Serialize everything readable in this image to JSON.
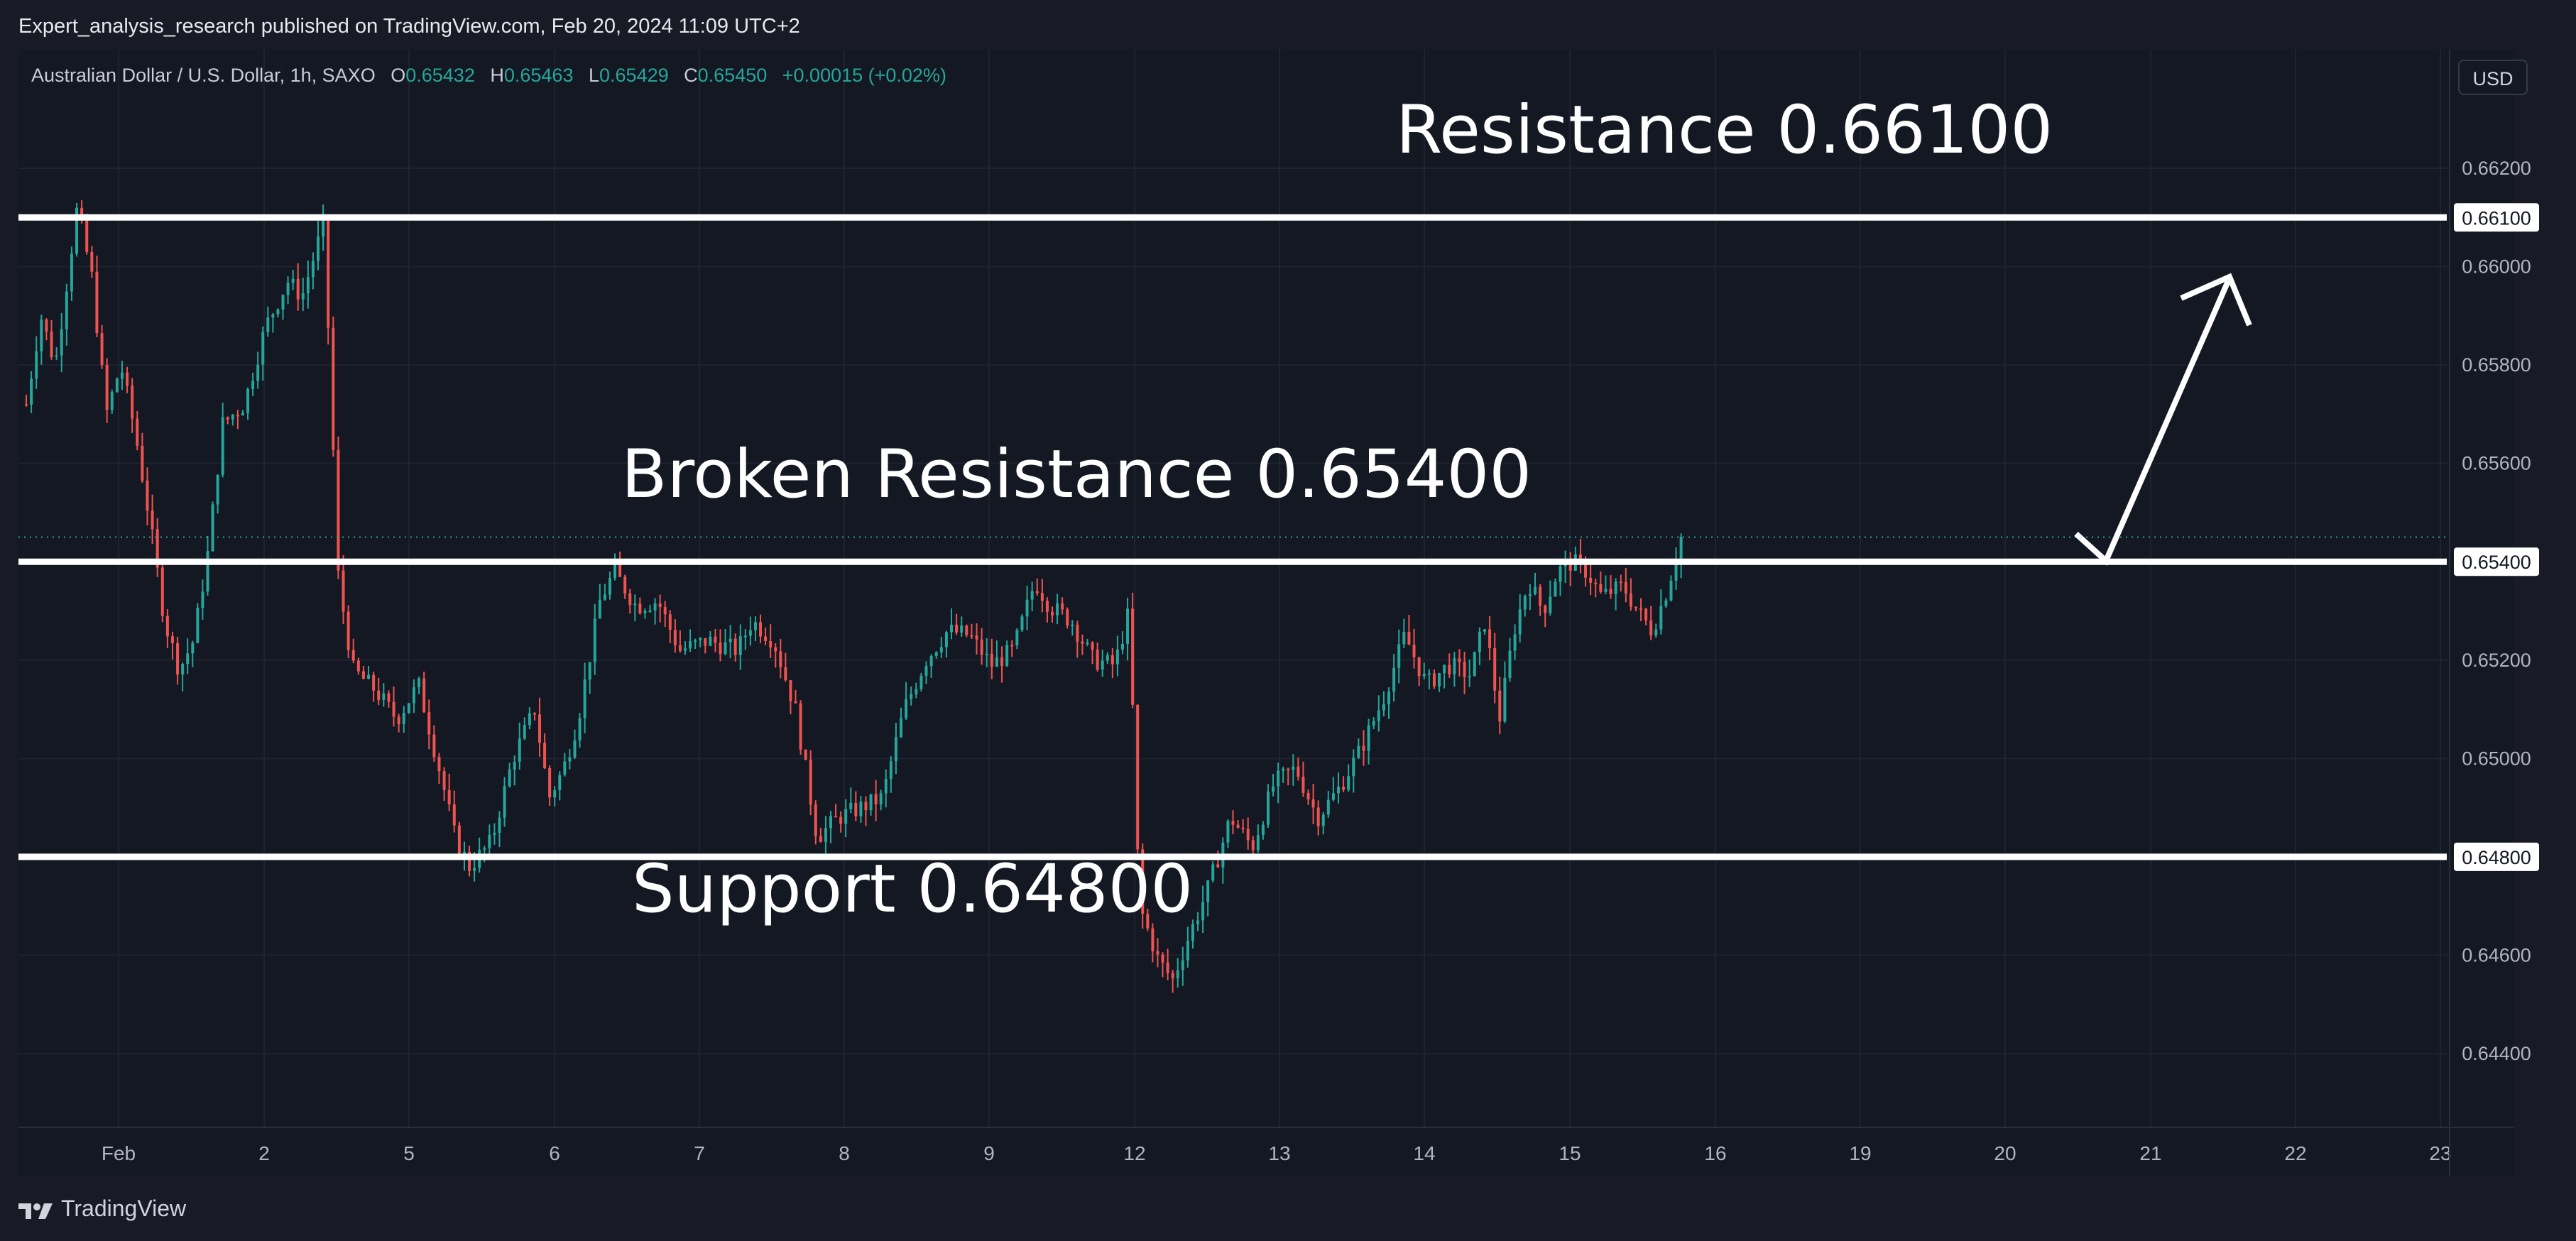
{
  "header": {
    "published_line": "Expert_analysis_research published on TradingView.com, Feb 20, 2024 11:09 UTC+2"
  },
  "symbol_bar": {
    "name": "Australian Dollar / U.S. Dollar, 1h, SAXO",
    "open_label": "O",
    "open": "0.65432",
    "high_label": "H",
    "high": "0.65463",
    "low_label": "L",
    "low": "0.65429",
    "close_label": "C",
    "close": "0.65450",
    "change": "+0.00015 (+0.02%)"
  },
  "currency_button": "USD",
  "brand": "TradingView",
  "colors": {
    "background": "#141823",
    "up": "#26a69a",
    "down": "#ef5350",
    "grid": "#1f2330",
    "annotation": "#ffffff"
  },
  "chart_data": {
    "type": "candlestick",
    "instrument": "AUDUSD",
    "interval": "1h",
    "ylim": [
      0.6415,
      0.6635
    ],
    "y_ticks": [
      "0.64400",
      "0.64600",
      "0.64800",
      "0.65000",
      "0.65200",
      "0.65400",
      "0.65600",
      "0.65800",
      "0.66000",
      "0.66200"
    ],
    "x_ticks": [
      "Feb",
      "2",
      "5",
      "6",
      "7",
      "8",
      "9",
      "12",
      "13",
      "14",
      "15",
      "16",
      "19",
      "20",
      "21",
      "22",
      "23"
    ],
    "grid": true,
    "last_price_line": 0.6545,
    "horizontal_levels": [
      {
        "value": 0.661,
        "label": "Resistance 0.66100",
        "axis_label": "0.66100"
      },
      {
        "value": 0.654,
        "label": "Broken Resistance 0.65400",
        "axis_label": "0.65400"
      },
      {
        "value": 0.648,
        "label": "Support 0.64800",
        "axis_label": "0.64800"
      }
    ],
    "projection_arrow": {
      "from": {
        "x": "20",
        "y": 0.6545
      },
      "via": {
        "x": "20",
        "y": 0.654
      },
      "to": {
        "x": "21.6",
        "y": 0.6599
      }
    },
    "price_path": [
      [
        0.0,
        0.6572
      ],
      [
        0.1,
        0.659
      ],
      [
        0.2,
        0.658
      ],
      [
        0.35,
        0.6612
      ],
      [
        0.45,
        0.6598
      ],
      [
        0.55,
        0.657
      ],
      [
        0.65,
        0.658
      ],
      [
        0.75,
        0.6566
      ],
      [
        0.85,
        0.6548
      ],
      [
        0.95,
        0.6528
      ],
      [
        1.05,
        0.6518
      ],
      [
        1.15,
        0.6524
      ],
      [
        1.25,
        0.6542
      ],
      [
        1.35,
        0.6568
      ],
      [
        1.5,
        0.6572
      ],
      [
        1.65,
        0.6588
      ],
      [
        1.8,
        0.6597
      ],
      [
        1.9,
        0.6594
      ],
      [
        2.05,
        0.6609
      ],
      [
        2.15,
        0.6536
      ],
      [
        2.25,
        0.6518
      ],
      [
        2.4,
        0.6514
      ],
      [
        2.55,
        0.6508
      ],
      [
        2.7,
        0.6515
      ],
      [
        2.85,
        0.6497
      ],
      [
        2.95,
        0.6484
      ],
      [
        3.05,
        0.6478
      ],
      [
        3.2,
        0.6483
      ],
      [
        3.35,
        0.65
      ],
      [
        3.5,
        0.651
      ],
      [
        3.6,
        0.6492
      ],
      [
        3.7,
        0.6498
      ],
      [
        3.8,
        0.6508
      ],
      [
        3.95,
        0.6532
      ],
      [
        4.05,
        0.6538
      ],
      [
        4.2,
        0.6531
      ],
      [
        4.35,
        0.6532
      ],
      [
        4.5,
        0.6522
      ],
      [
        4.7,
        0.6524
      ],
      [
        4.9,
        0.6522
      ],
      [
        5.0,
        0.6528
      ],
      [
        5.15,
        0.6524
      ],
      [
        5.3,
        0.651
      ],
      [
        5.45,
        0.6484
      ],
      [
        5.6,
        0.6488
      ],
      [
        5.75,
        0.649
      ],
      [
        5.9,
        0.6492
      ],
      [
        6.05,
        0.651
      ],
      [
        6.2,
        0.652
      ],
      [
        6.35,
        0.6526
      ],
      [
        6.5,
        0.6525
      ],
      [
        6.65,
        0.6519
      ],
      [
        6.8,
        0.6522
      ],
      [
        6.95,
        0.6536
      ],
      [
        7.05,
        0.6531
      ],
      [
        7.2,
        0.6528
      ],
      [
        7.35,
        0.652
      ],
      [
        7.5,
        0.6519
      ],
      [
        7.6,
        0.653
      ],
      [
        7.67,
        0.647
      ],
      [
        7.8,
        0.6459
      ],
      [
        7.9,
        0.6455
      ],
      [
        8.0,
        0.6463
      ],
      [
        8.15,
        0.6474
      ],
      [
        8.3,
        0.6488
      ],
      [
        8.45,
        0.6482
      ],
      [
        8.6,
        0.6495
      ],
      [
        8.75,
        0.6498
      ],
      [
        8.9,
        0.6488
      ],
      [
        9.05,
        0.6494
      ],
      [
        9.2,
        0.6502
      ],
      [
        9.35,
        0.6512
      ],
      [
        9.5,
        0.6525
      ],
      [
        9.65,
        0.6515
      ],
      [
        9.8,
        0.6519
      ],
      [
        9.95,
        0.6517
      ],
      [
        10.05,
        0.6528
      ],
      [
        10.15,
        0.6508
      ],
      [
        10.25,
        0.6526
      ],
      [
        10.35,
        0.6536
      ],
      [
        10.45,
        0.653
      ],
      [
        10.55,
        0.6538
      ],
      [
        10.65,
        0.654
      ],
      [
        10.75,
        0.6538
      ],
      [
        10.85,
        0.6533
      ],
      [
        11.0,
        0.6535
      ],
      [
        11.1,
        0.653
      ],
      [
        11.2,
        0.6526
      ],
      [
        11.3,
        0.6534
      ],
      [
        11.4,
        0.6545
      ]
    ]
  }
}
